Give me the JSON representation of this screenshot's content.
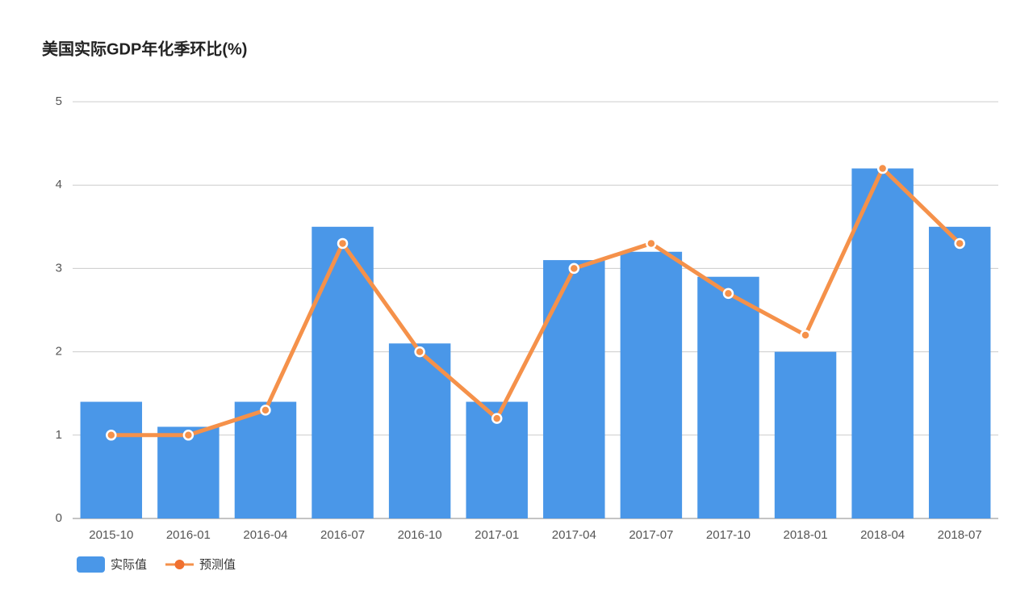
{
  "chart_data": {
    "type": "bar",
    "title": "美国实际GDP年化季环比(%)",
    "categories": [
      "2015-10",
      "2016-01",
      "2016-04",
      "2016-07",
      "2016-10",
      "2017-01",
      "2017-04",
      "2017-07",
      "2017-10",
      "2018-01",
      "2018-04",
      "2018-07"
    ],
    "series": [
      {
        "name": "实际值",
        "type": "bar",
        "color": "#4a97e8",
        "values": [
          1.4,
          1.1,
          1.4,
          3.5,
          2.1,
          1.4,
          3.1,
          3.2,
          2.9,
          2.0,
          4.2,
          3.5
        ]
      },
      {
        "name": "预测值",
        "type": "line",
        "color": "#f5914a",
        "values": [
          1.0,
          1.0,
          1.3,
          3.3,
          2.0,
          1.2,
          3.0,
          3.3,
          2.7,
          2.2,
          4.2,
          3.3
        ]
      }
    ],
    "ylim": [
      0,
      5
    ],
    "yticks": [
      0,
      1,
      2,
      3,
      4,
      5
    ],
    "grid": true
  }
}
